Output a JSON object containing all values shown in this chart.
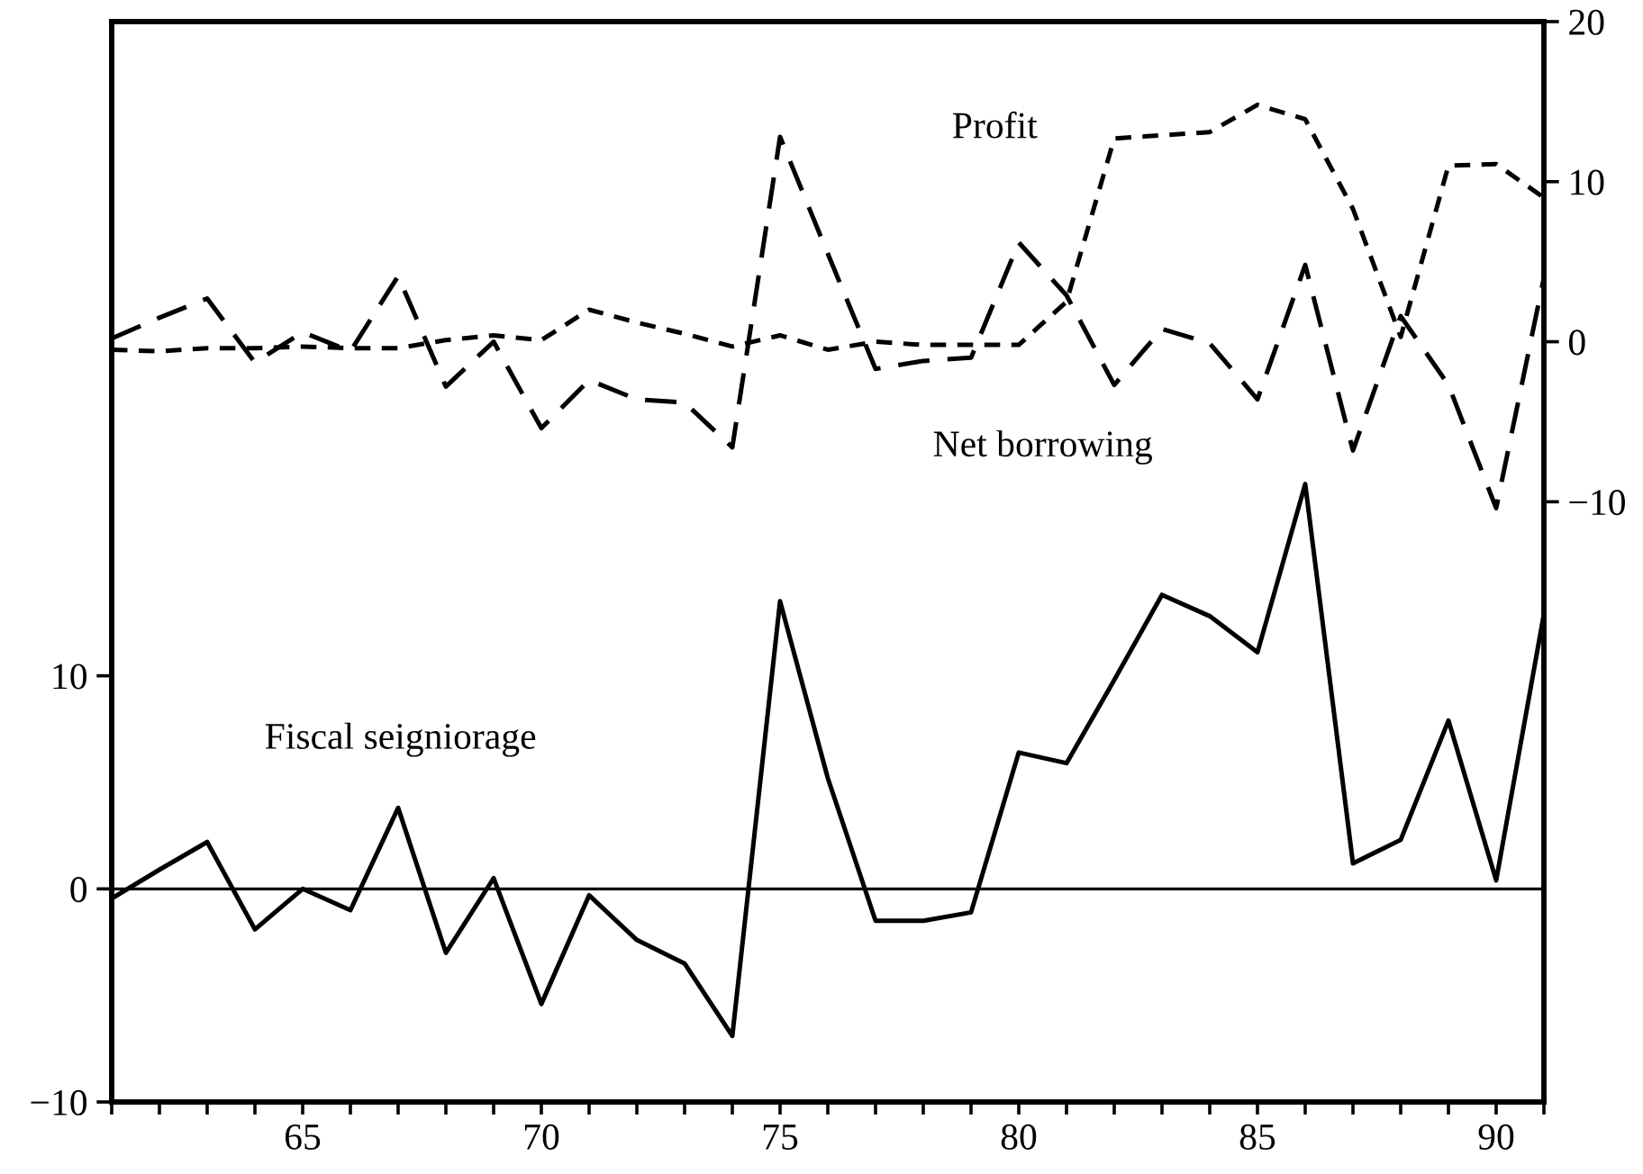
{
  "chart_data": {
    "type": "line",
    "x": [
      61,
      62,
      63,
      64,
      65,
      66,
      67,
      68,
      69,
      70,
      71,
      72,
      73,
      74,
      75,
      76,
      77,
      78,
      79,
      80,
      81,
      82,
      83,
      84,
      85,
      86,
      87,
      88,
      89,
      90,
      91
    ],
    "series": [
      {
        "name": "Fiscal seigniorage",
        "color": "#000000",
        "line_style": "solid",
        "values": [
          -0.45,
          0.9,
          2.2,
          -1.9,
          0,
          -1.0,
          3.8,
          -3.0,
          0.5,
          -5.4,
          -0.3,
          -2.4,
          -3.5,
          -6.9,
          13.5,
          5.2,
          -1.5,
          -1.5,
          -1.1,
          6.4,
          5.9,
          9.8,
          13.8,
          12.8,
          11.1,
          19.0,
          1.2,
          2.3,
          7.9,
          0.4,
          12.9
        ]
      },
      {
        "name": "Profit",
        "color": "#000000",
        "line_style": "dotted",
        "axis": "y2",
        "values": [
          -0.5,
          -0.6,
          -0.4,
          -0.4,
          -0.3,
          -0.4,
          -0.4,
          0.1,
          0.4,
          0.1,
          2.0,
          1.2,
          0.5,
          -0.3,
          0.4,
          -0.5,
          0,
          -0.2,
          -0.2,
          -0.2,
          2.5,
          12.7,
          12.9,
          13.1,
          14.8,
          13.9,
          8.3,
          0.3,
          11.0,
          11.1,
          9.0
        ]
      },
      {
        "name": "Net borrowing",
        "color": "#000000",
        "line_style": "dashed",
        "axis": "y2",
        "values": [
          0.2,
          1.5,
          2.7,
          -1.3,
          0.6,
          -0.6,
          4.1,
          -2.8,
          0,
          -5.4,
          -2.4,
          -3.6,
          -3.8,
          -6.6,
          12.8,
          5.5,
          -1.7,
          -1.2,
          -1.0,
          6.2,
          2.9,
          -2.7,
          0.8,
          -0.1,
          -3.6,
          4.8,
          -6.8,
          1.6,
          -2.7,
          -10.4,
          4.0
        ]
      }
    ],
    "xlim": [
      61,
      91
    ],
    "xticks": [
      {
        "value": 61,
        "label": null
      },
      {
        "value": 62,
        "label": null
      },
      {
        "value": 63,
        "label": null
      },
      {
        "value": 64,
        "label": null
      },
      65,
      {
        "value": 66,
        "label": null
      },
      {
        "value": 67,
        "label": null
      },
      {
        "value": 68,
        "label": null
      },
      {
        "value": 69,
        "label": null
      },
      70,
      {
        "value": 71,
        "label": null
      },
      {
        "value": 72,
        "label": null
      },
      {
        "value": 73,
        "label": null
      },
      {
        "value": 74,
        "label": null
      },
      75,
      {
        "value": 76,
        "label": null
      },
      {
        "value": 77,
        "label": null
      },
      {
        "value": 78,
        "label": null
      },
      {
        "value": 79,
        "label": null
      },
      80,
      {
        "value": 81,
        "label": null
      },
      {
        "value": 82,
        "label": null
      },
      {
        "value": 83,
        "label": null
      },
      {
        "value": 84,
        "label": null
      },
      85,
      {
        "value": 86,
        "label": null
      },
      {
        "value": 87,
        "label": null
      },
      {
        "value": 88,
        "label": null
      },
      {
        "value": 89,
        "label": null
      },
      90,
      {
        "value": 91,
        "label": null
      }
    ],
    "ylim": [
      -10,
      40.7
    ],
    "yticks": [
      {
        "value": -10,
        "label": "−10"
      },
      0,
      10
    ],
    "y2lim": [
      -47.5,
      20
    ],
    "y2ticks": [
      {
        "value": -10,
        "label": "−10"
      },
      0,
      10,
      20
    ],
    "ref_lines": [
      {
        "axis": "y",
        "value": 0,
        "color": "#000000"
      }
    ],
    "grid": false,
    "legend": false,
    "marker": "none"
  }
}
